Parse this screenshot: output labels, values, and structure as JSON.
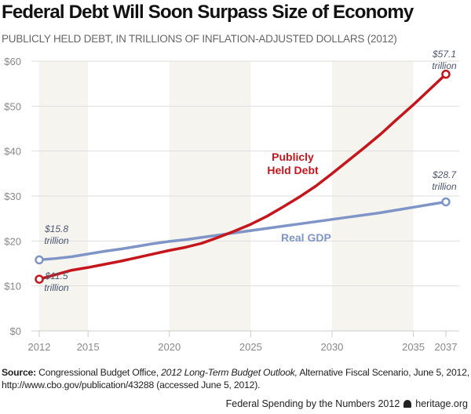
{
  "chart_data": {
    "type": "line",
    "title": "Federal Debt Will Soon Surpass Size of Economy",
    "subtitle": "PUBLICLY HELD DEBT, IN TRILLIONS OF INFLATION-ADJUSTED DOLLARS (2012)",
    "xlim": [
      2012,
      2037
    ],
    "ylim": [
      0,
      60
    ],
    "x_ticks": [
      2012,
      2015,
      2020,
      2025,
      2030,
      2035,
      2037
    ],
    "y_ticks": [
      0,
      10,
      20,
      30,
      40,
      50,
      60
    ],
    "y_tick_labels": [
      "$0",
      "$10",
      "$20",
      "$30",
      "$40",
      "$50",
      "$60"
    ],
    "shaded_bands": [
      [
        2012,
        2015
      ],
      [
        2020,
        2025
      ],
      [
        2030,
        2035
      ]
    ],
    "grid": "horizontal",
    "x": [
      2012,
      2013,
      2014,
      2015,
      2016,
      2017,
      2018,
      2019,
      2020,
      2021,
      2022,
      2023,
      2024,
      2025,
      2026,
      2027,
      2028,
      2029,
      2030,
      2031,
      2032,
      2033,
      2034,
      2035,
      2036,
      2037
    ],
    "series": [
      {
        "name": "Publicly Held Debt",
        "label_lines": [
          "Publicly",
          "Held Debt"
        ],
        "color": "#c4161c",
        "values": [
          11.5,
          12.5,
          13.5,
          14.1,
          14.8,
          15.5,
          16.3,
          17.1,
          17.9,
          18.6,
          19.5,
          20.8,
          22.2,
          23.7,
          25.5,
          27.6,
          29.8,
          32.2,
          35.0,
          37.9,
          40.8,
          43.8,
          47.1,
          50.3,
          53.7,
          57.1
        ]
      },
      {
        "name": "Real GDP",
        "label_lines": [
          "Real GDP"
        ],
        "color": "#7f95c8",
        "values": [
          15.8,
          16.1,
          16.5,
          17.1,
          17.7,
          18.2,
          18.8,
          19.4,
          19.9,
          20.3,
          20.8,
          21.3,
          21.8,
          22.3,
          22.8,
          23.3,
          23.8,
          24.3,
          24.8,
          25.3,
          25.8,
          26.3,
          26.9,
          27.5,
          28.1,
          28.7
        ]
      }
    ],
    "annotations": [
      {
        "lines": [
          "$15.8",
          "trillion"
        ],
        "x": 2012,
        "y": 15.8
      },
      {
        "lines": [
          "$11.5",
          "trillion"
        ],
        "x": 2012,
        "y": 11.5
      },
      {
        "lines": [
          "$28.7",
          "trillion"
        ],
        "x": 2037,
        "y": 28.7
      },
      {
        "lines": [
          "$57.1",
          "trillion"
        ],
        "x": 2037,
        "y": 57.1
      }
    ]
  },
  "source": {
    "label": "Source:",
    "text1": " Congressional Budget Office, ",
    "italic": "2012 Long-Term Budget Outlook,",
    "text2": " Alternative Fiscal Scenario, June 5, 2012, http://www.cbo.gov/publication/43288 (accessed June 5, 2012)."
  },
  "footer": {
    "left": "Federal Spending by the Numbers 2012",
    "right": "heritage.org",
    "logo": "liberty-bell-icon"
  }
}
